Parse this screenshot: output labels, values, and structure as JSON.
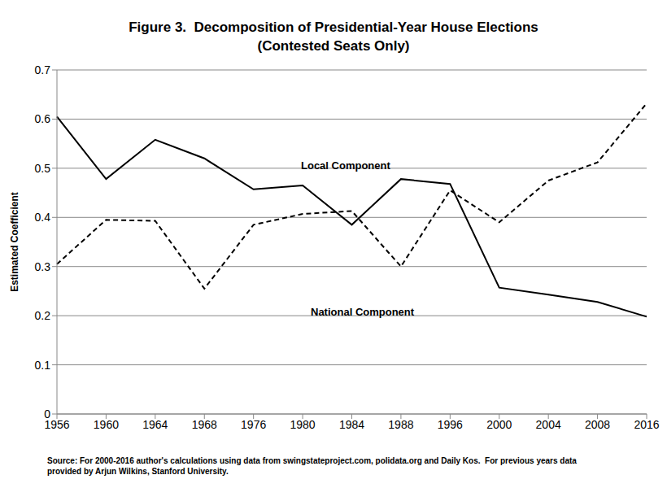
{
  "chart_data": {
    "type": "line",
    "title": "Figure 3.  Decomposition of Presidential-Year House Elections",
    "subtitle": "(Contested Seats Only)",
    "y_label": "Estimated Coefficient",
    "source": "Source: For 2000-2016 author's calculations using data from swingstateproject.com, polidata.org and Daily Kos.  For previous years data provided by Arjun Wilkins, Stanford University.",
    "categories": [
      "1956",
      "1960",
      "1964",
      "1968",
      "1976",
      "1980",
      "1984",
      "1988",
      "1996",
      "2000",
      "2004",
      "2008",
      "2016"
    ],
    "series": [
      {
        "name": "Local Component",
        "color": "#000000",
        "line_style": "solid",
        "values": [
          0.605,
          0.478,
          0.558,
          0.52,
          0.457,
          0.465,
          0.385,
          0.478,
          0.468,
          0.257,
          0.243,
          0.228,
          0.198
        ]
      },
      {
        "name": "National Component",
        "color": "#000000",
        "line_style": "dashed",
        "values": [
          0.305,
          0.395,
          0.393,
          0.255,
          0.385,
          0.407,
          0.413,
          0.3,
          0.455,
          0.39,
          0.475,
          0.512,
          0.632
        ]
      }
    ],
    "ylim": [
      0,
      0.7
    ],
    "yticks": [
      0,
      0.1,
      0.2,
      0.3,
      0.4,
      0.5,
      0.6,
      0.7
    ],
    "grid": true
  }
}
